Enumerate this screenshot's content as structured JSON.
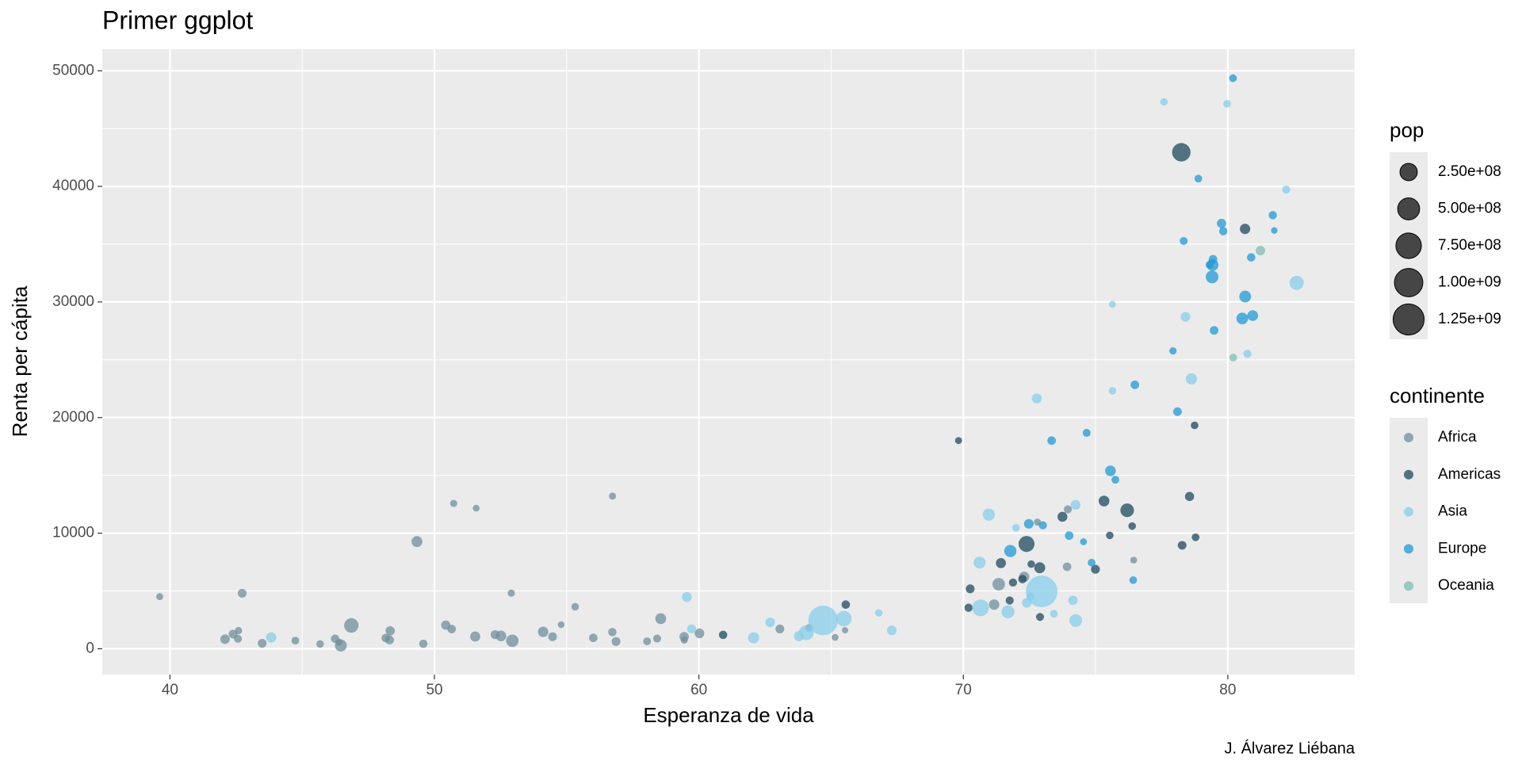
{
  "chart_data": {
    "type": "scatter",
    "title": "Primer ggplot",
    "x_label": "Esperanza de vida",
    "y_label": "Renta per cápita",
    "caption": "J. Álvarez Liébana",
    "xlim": [
      37.44,
      84.8
    ],
    "ylim": [
      -2236,
      51872
    ],
    "xticks": [
      40,
      50,
      60,
      70,
      80
    ],
    "yticks": [
      0,
      10000,
      20000,
      30000,
      40000,
      50000
    ],
    "xminorticks": [
      45,
      55,
      65,
      75
    ],
    "yminorticks": [
      5000,
      15000,
      25000,
      35000,
      45000
    ],
    "grid": true,
    "legend_position": "right",
    "size_legend": {
      "title": "pop",
      "breaks": [
        {
          "value": 250000000,
          "label": "2.50e+08"
        },
        {
          "value": 500000000,
          "label": "5.00e+08"
        },
        {
          "value": 750000000,
          "label": "7.50e+08"
        },
        {
          "value": 1000000000,
          "label": "1.00e+09"
        },
        {
          "value": 1250000000,
          "label": "1.25e+09"
        }
      ]
    },
    "legend_title": "continente",
    "series": [
      {
        "name": "Africa",
        "color": "#6f8f9c",
        "x": [
          72.301,
          42.731,
          56.728,
          50.728,
          52.295,
          49.58,
          50.43,
          44.741,
          50.651,
          65.152,
          46.462,
          55.322,
          48.328,
          54.791,
          71.338,
          51.579,
          58.04,
          52.947,
          56.735,
          59.448,
          60.022,
          56.007,
          46.388,
          54.11,
          42.592,
          45.678,
          73.952,
          59.443,
          48.303,
          54.467,
          64.164,
          72.801,
          71.164,
          42.082,
          52.906,
          56.867,
          46.859,
          76.442,
          46.242,
          65.528,
          63.062,
          42.568,
          48.159,
          49.339,
          58.556,
          39.613,
          52.517,
          58.42,
          73.923,
          51.542,
          42.384,
          43.487
        ],
        "values": [
          6223,
          4797,
          1441,
          12570,
          1217,
          430,
          2042,
          706,
          1704,
          986,
          278,
          3633,
          1545,
          2082,
          5581,
          12154,
          641,
          691,
          13206,
          753,
          1328,
          943,
          579,
          1463,
          1569,
          415,
          12057,
          1044,
          759,
          1042,
          1803,
          10957,
          3820,
          824,
          4811,
          620,
          2014,
          7670,
          863,
          1598,
          1712,
          863,
          926,
          9270,
          2602,
          4513,
          1107,
          883,
          7093,
          1056,
          1271,
          470
        ],
        "sizes": [
          33333216,
          12420476,
          8078314,
          1639131,
          14326203,
          8390505,
          17696293,
          4369038,
          10238807,
          710960,
          64606759,
          3800610,
          18013409,
          496374,
          80264543,
          551201,
          4906585,
          76511887,
          1454867,
          1688359,
          22873338,
          9947814,
          1472041,
          35610177,
          2012649,
          3193942,
          6036914,
          19167654,
          13327079,
          12031795,
          3270065,
          1250882,
          33757175,
          19951656,
          2055080,
          12894865,
          135031164,
          798094,
          8860588,
          199579,
          12267493,
          6144562,
          9118773,
          43997828,
          42292929,
          1133066,
          38139640,
          5701579,
          10276158,
          29170398,
          11746035,
          12311143
        ]
      },
      {
        "name": "Americas",
        "color": "#1d4a5e",
        "x": [
          75.32,
          65.554,
          72.39,
          80.653,
          78.553,
          72.889,
          78.782,
          78.273,
          72.235,
          74.994,
          71.878,
          70.259,
          60.916,
          70.198,
          72.567,
          76.195,
          72.899,
          75.537,
          71.752,
          71.421,
          78.746,
          69.819,
          78.242,
          76.384,
          73.747
        ],
        "values": [
          12779,
          3822,
          9066,
          36319,
          13172,
          7007,
          9645,
          8948,
          6025,
          6873,
          5728,
          5186,
          1202,
          3548,
          7321,
          11978,
          2749,
          9809,
          4173,
          7409,
          19329,
          18009,
          42952,
          10611,
          11416
        ],
        "sizes": [
          40301927,
          9119152,
          190010647,
          33390141,
          16284741,
          44227550,
          4133884,
          11416987,
          9319622,
          13755680,
          6939688,
          12572928,
          8502814,
          7483763,
          2780132,
          108700891,
          5675356,
          3242173,
          6667147,
          28674757,
          3942491,
          1056608,
          301139947,
          3447496,
          26084662
        ]
      },
      {
        "name": "Asia",
        "color": "#87ceeb",
        "x": [
          43.828,
          75.635,
          64.062,
          59.723,
          72.961,
          82.208,
          64.698,
          70.65,
          70.964,
          59.545,
          80.745,
          82.603,
          72.535,
          67.297,
          78.623,
          77.588,
          71.993,
          74.241,
          66.803,
          62.069,
          63.785,
          75.64,
          65.483,
          71.688,
          72.777,
          79.972,
          72.396,
          74.143,
          78.4,
          70.616,
          74.249,
          73.422,
          62.698
        ],
        "values": [
          975,
          29796,
          1391,
          1714,
          4959,
          39725,
          2452,
          3541,
          11606,
          4471,
          25523,
          31656,
          4519,
          1593,
          23348,
          47307,
          10461,
          12452,
          3096,
          944,
          1091,
          22316,
          2606,
          3190,
          21655,
          47143,
          3970,
          4185,
          28718,
          7458,
          2442,
          3025,
          2281
        ],
        "sizes": [
          31889923,
          708573,
          150448339,
          14131858,
          1318683096,
          6980412,
          1110396331,
          223547000,
          69453570,
          27499638,
          6426679,
          127467972,
          6053193,
          23301725,
          49044790,
          2505559,
          3921278,
          24821286,
          2874127,
          47761980,
          28901790,
          3204897,
          169270617,
          91077287,
          27601038,
          4553009,
          20378239,
          19314747,
          23174294,
          65068149,
          85262356,
          4018332,
          22211743
        ]
      },
      {
        "name": "Europe",
        "color": "#1f9ad6",
        "x": [
          76.423,
          79.829,
          79.441,
          74.852,
          73.005,
          75.748,
          76.486,
          78.332,
          79.313,
          80.657,
          79.406,
          79.483,
          73.338,
          81.757,
          78.885,
          80.546,
          74.543,
          79.762,
          80.196,
          75.563,
          78.098,
          72.476,
          74.002,
          74.663,
          77.926,
          80.941,
          80.884,
          81.701,
          71.777,
          79.425
        ],
        "values": [
          5937,
          36126,
          33693,
          7446,
          10681,
          14619,
          22833,
          35278,
          33207,
          30470,
          32170,
          27538,
          18009,
          36181,
          40676,
          28570,
          9254,
          36798,
          49357,
          15390,
          20510,
          10808,
          9787,
          18678,
          25768,
          28821,
          33860,
          37506,
          8458,
          33203
        ],
        "sizes": [
          3600523,
          8199783,
          10392226,
          4552198,
          7322858,
          4493312,
          10228744,
          5468120,
          5238460,
          61083916,
          82400996,
          10706290,
          9956108,
          301931,
          4109086,
          58147733,
          684736,
          16570613,
          4627926,
          38518241,
          10642836,
          22276056,
          10150265,
          5447502,
          2009245,
          40448191,
          9031088,
          7554661,
          71158647,
          60776238
        ]
      },
      {
        "name": "Oceania",
        "color": "#7dbdb4",
        "x": [
          81.235,
          80.204
        ],
        "values": [
          34435,
          25185
        ],
        "sizes": [
          20434176,
          4115771
        ]
      }
    ]
  }
}
